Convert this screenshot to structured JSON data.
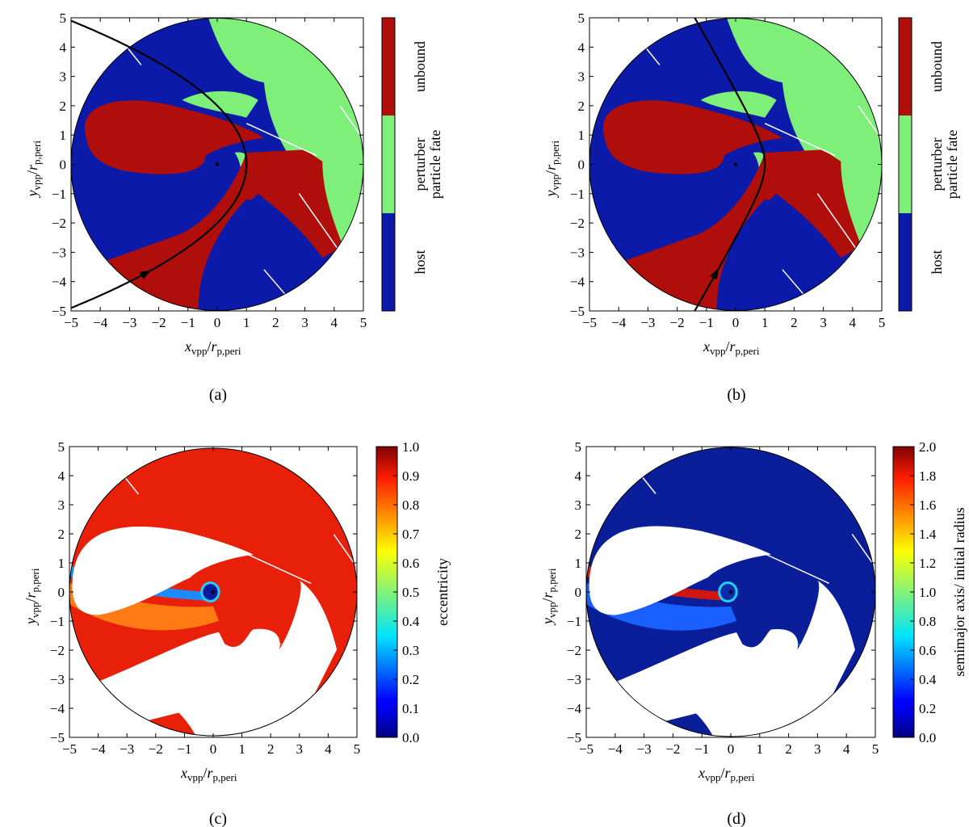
{
  "figure": {
    "captions": [
      "(a)",
      "(b)",
      "(c)",
      "(d)"
    ]
  },
  "chart_data": [
    {
      "id": "a",
      "type": "heatmap",
      "caption": "(a)",
      "xlabel": {
        "main": "x",
        "sub": "vpp",
        "den": "r",
        "densub": "p,peri"
      },
      "ylabel": {
        "main": "y",
        "sub": "vpp",
        "den": "r",
        "densub": "p,peri"
      },
      "xlim": [
        -5,
        5
      ],
      "ylim": [
        -5,
        5
      ],
      "xticks": [
        -5,
        -4,
        -3,
        -2,
        -1,
        0,
        1,
        2,
        3,
        4,
        5
      ],
      "yticks": [
        -5,
        -4,
        -3,
        -2,
        -1,
        0,
        1,
        2,
        3,
        4,
        5
      ],
      "colorbar": {
        "kind": "categorical",
        "label": "particle fate",
        "categories": [
          {
            "label": "host",
            "color": "#0b1aa8"
          },
          {
            "label": "perturber",
            "color": "#7ef07a"
          },
          {
            "label": "unbound",
            "color": "#b00e0b"
          }
        ]
      },
      "trajectory": {
        "shape": "parabola",
        "vertex": [
          1,
          0
        ],
        "direction": "counterclockwise"
      }
    },
    {
      "id": "b",
      "type": "heatmap",
      "caption": "(b)",
      "xlabel": {
        "main": "x",
        "sub": "vpp",
        "den": "r",
        "densub": "p,peri"
      },
      "ylabel": {
        "main": "y",
        "sub": "vpp",
        "den": "r",
        "densub": "p,peri"
      },
      "xlim": [
        -5,
        5
      ],
      "ylim": [
        -5,
        5
      ],
      "xticks": [
        -5,
        -4,
        -3,
        -2,
        -1,
        0,
        1,
        2,
        3,
        4,
        5
      ],
      "yticks": [
        -5,
        -4,
        -3,
        -2,
        -1,
        0,
        1,
        2,
        3,
        4,
        5
      ],
      "colorbar": {
        "kind": "categorical",
        "label": "particle fate",
        "categories": [
          {
            "label": "host",
            "color": "#0b1aa8"
          },
          {
            "label": "perturber",
            "color": "#7ef07a"
          },
          {
            "label": "unbound",
            "color": "#b00e0b"
          }
        ]
      },
      "trajectory": {
        "shape": "hyperbola",
        "vertex": [
          1,
          0
        ],
        "direction": "counterclockwise"
      }
    },
    {
      "id": "c",
      "type": "heatmap",
      "caption": "(c)",
      "xlabel": {
        "main": "x",
        "sub": "vpp",
        "den": "r",
        "densub": "p,peri"
      },
      "ylabel": {
        "main": "y",
        "sub": "vpp",
        "den": "r",
        "densub": "p,peri"
      },
      "xlim": [
        -5,
        5
      ],
      "ylim": [
        -5,
        5
      ],
      "xticks": [
        -5,
        -4,
        -3,
        -2,
        -1,
        0,
        1,
        2,
        3,
        4,
        5
      ],
      "yticks": [
        -5,
        -4,
        -3,
        -2,
        -1,
        0,
        1,
        2,
        3,
        4,
        5
      ],
      "colorbar": {
        "kind": "continuous",
        "label": "eccentricity",
        "range": [
          0.0,
          1.0
        ],
        "ticks": [
          "0.0",
          "0.1",
          "0.2",
          "0.3",
          "0.4",
          "0.5",
          "0.6",
          "0.7",
          "0.8",
          "0.9",
          "1.0"
        ],
        "colormap": "jet"
      }
    },
    {
      "id": "d",
      "type": "heatmap",
      "caption": "(d)",
      "xlabel": {
        "main": "x",
        "sub": "vpp",
        "den": "r",
        "densub": "p,peri"
      },
      "ylabel": {
        "main": "y",
        "sub": "vpp",
        "den": "r",
        "densub": "p,peri"
      },
      "xlim": [
        -5,
        5
      ],
      "ylim": [
        -5,
        5
      ],
      "xticks": [
        -5,
        -4,
        -3,
        -2,
        -1,
        0,
        1,
        2,
        3,
        4,
        5
      ],
      "yticks": [
        -5,
        -4,
        -3,
        -2,
        -1,
        0,
        1,
        2,
        3,
        4,
        5
      ],
      "colorbar": {
        "kind": "continuous",
        "label": "semimajor axis/ initial radius",
        "range": [
          0.0,
          2.0
        ],
        "ticks": [
          "0.0",
          "0.2",
          "0.4",
          "0.6",
          "0.8",
          "1.0",
          "1.2",
          "1.4",
          "1.6",
          "1.8",
          "2.0"
        ],
        "colormap": "jet"
      }
    }
  ]
}
